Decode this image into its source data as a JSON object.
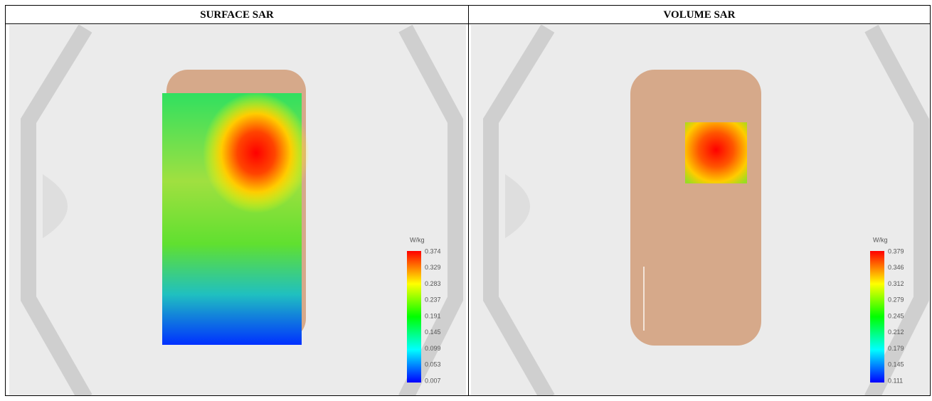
{
  "table": {
    "headers": [
      "SURFACE SAR",
      "VOLUME SAR"
    ],
    "panels": [
      {
        "unit": "W/kg",
        "legend": [
          "0.374",
          "0.329",
          "0.283",
          "0.237",
          "0.191",
          "0.145",
          "0.099",
          "0.053",
          "0.007"
        ]
      },
      {
        "unit": "W/kg",
        "legend": [
          "0.379",
          "0.346",
          "0.312",
          "0.279",
          "0.245",
          "0.212",
          "0.179",
          "0.145",
          "0.111"
        ]
      }
    ]
  }
}
